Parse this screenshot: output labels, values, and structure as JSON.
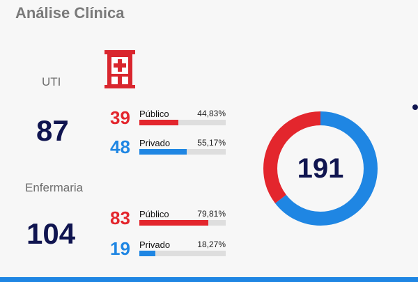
{
  "title": "Análise Clínica",
  "colors": {
    "public": "#e3262d",
    "private": "#1f86e3",
    "dark": "#101550"
  },
  "uti": {
    "label": "UTI",
    "total": "87",
    "publico": {
      "count": "39",
      "label": "Público",
      "pct": "44,83%",
      "fraction": 0.4483
    },
    "privado": {
      "count": "48",
      "label": "Privado",
      "pct": "55,17%",
      "fraction": 0.5517
    }
  },
  "enfermaria": {
    "label": "Enfermaria",
    "total": "104",
    "publico": {
      "count": "83",
      "label": "Público",
      "pct": "79,81%",
      "fraction": 0.7981
    },
    "privado": {
      "count": "19",
      "label": "Privado",
      "pct": "18,27%",
      "fraction": 0.1827
    }
  },
  "chart_data": {
    "type": "pie",
    "total_label": "191",
    "slices": [
      {
        "value": 122
      },
      {
        "value": 67
      }
    ]
  }
}
